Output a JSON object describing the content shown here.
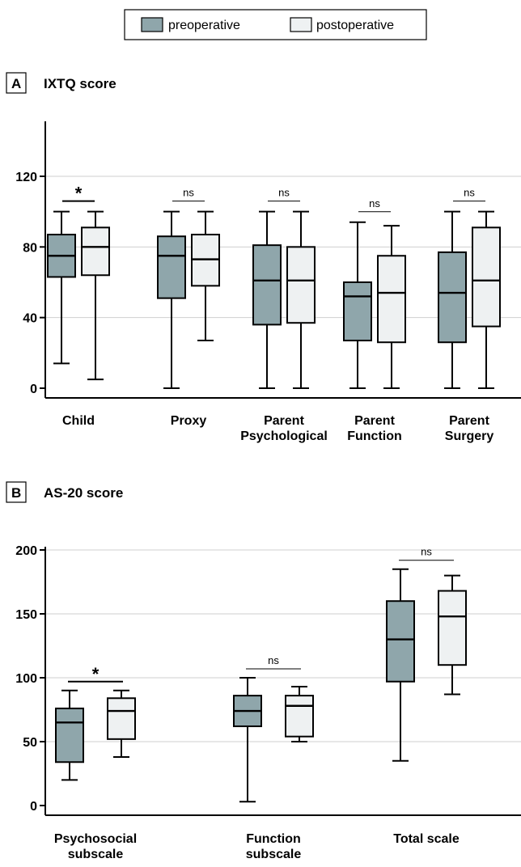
{
  "legend": {
    "items": [
      {
        "label": "preoperative",
        "color": "#8fa6ab"
      },
      {
        "label": "postoperative",
        "color": "#eef1f2"
      }
    ]
  },
  "chart_data": [
    {
      "type": "box",
      "panel_label": "A",
      "title": "IXTQ score",
      "ylim": [
        0,
        140
      ],
      "yticks": [
        0,
        40,
        80,
        120
      ],
      "grid": true,
      "categories": [
        {
          "lines": [
            "Child"
          ],
          "significance": "*"
        },
        {
          "lines": [
            "Proxy"
          ],
          "significance": "ns"
        },
        {
          "lines": [
            "Parent",
            "Psychological"
          ],
          "significance": "ns"
        },
        {
          "lines": [
            "Parent",
            "Function"
          ],
          "significance": "ns"
        },
        {
          "lines": [
            "Parent",
            "Surgery"
          ],
          "significance": "ns"
        }
      ],
      "series": [
        {
          "name": "preoperative",
          "boxes": [
            {
              "min": 14,
              "q1": 63,
              "median": 75,
              "q3": 87,
              "max": 100
            },
            {
              "min": 0,
              "q1": 51,
              "median": 75,
              "q3": 86,
              "max": 100
            },
            {
              "min": 0,
              "q1": 36,
              "median": 61,
              "q3": 81,
              "max": 100
            },
            {
              "min": 0,
              "q1": 27,
              "median": 52,
              "q3": 60,
              "max": 94
            },
            {
              "min": 0,
              "q1": 26,
              "median": 54,
              "q3": 77,
              "max": 100
            }
          ]
        },
        {
          "name": "postoperative",
          "boxes": [
            {
              "min": 5,
              "q1": 64,
              "median": 80,
              "q3": 91,
              "max": 100
            },
            {
              "min": 27,
              "q1": 58,
              "median": 73,
              "q3": 87,
              "max": 100
            },
            {
              "min": 0,
              "q1": 37,
              "median": 61,
              "q3": 80,
              "max": 100
            },
            {
              "min": 0,
              "q1": 26,
              "median": 54,
              "q3": 75,
              "max": 92
            },
            {
              "min": 0,
              "q1": 35,
              "median": 61,
              "q3": 91,
              "max": 100
            }
          ]
        }
      ]
    },
    {
      "type": "box",
      "panel_label": "B",
      "title": "AS-20 score",
      "ylim": [
        0,
        200
      ],
      "yticks": [
        0,
        50,
        100,
        150,
        200
      ],
      "grid": true,
      "categories": [
        {
          "lines": [
            "Psychosocial",
            "subscale"
          ],
          "significance": "*"
        },
        {
          "lines": [
            "Function",
            "subscale"
          ],
          "significance": "ns"
        },
        {
          "lines": [
            "Total scale"
          ],
          "significance": "ns"
        }
      ],
      "series": [
        {
          "name": "preoperative",
          "boxes": [
            {
              "min": 20,
              "q1": 34,
              "median": 65,
              "q3": 76,
              "max": 90
            },
            {
              "min": 3,
              "q1": 62,
              "median": 74,
              "q3": 86,
              "max": 100
            },
            {
              "min": 35,
              "q1": 97,
              "median": 130,
              "q3": 160,
              "max": 185
            }
          ]
        },
        {
          "name": "postoperative",
          "boxes": [
            {
              "min": 38,
              "q1": 52,
              "median": 74,
              "q3": 84,
              "max": 90
            },
            {
              "min": 50,
              "q1": 54,
              "median": 78,
              "q3": 86,
              "max": 93
            },
            {
              "min": 87,
              "q1": 110,
              "median": 148,
              "q3": 168,
              "max": 180
            }
          ]
        }
      ]
    }
  ]
}
